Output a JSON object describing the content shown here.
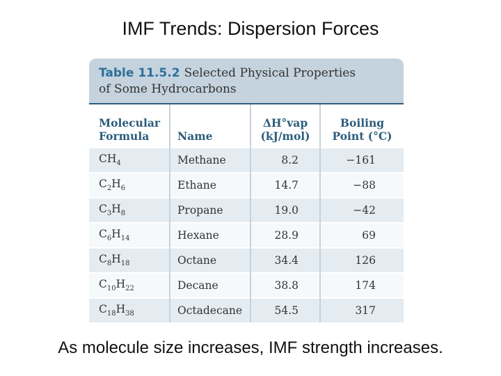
{
  "slide": {
    "title": "IMF Trends: Dispersion Forces",
    "caption": "As molecule size increases, IMF strength increases."
  },
  "table": {
    "number": "Table 11.5.2",
    "title_line1": "Selected Physical Properties",
    "title_line2": "of Some Hydrocarbons",
    "headers": {
      "formula_line1": "Molecular",
      "formula_line2": "Formula",
      "name": "Name",
      "dh_line1": "ΔH°vap",
      "dh_line2": "(kJ/mol)",
      "bp_line1": "Boiling",
      "bp_line2": "Point (°C)"
    },
    "rows": [
      {
        "c": "C",
        "cn": "",
        "h": "H",
        "hn": "4",
        "name": "Methane",
        "dh": "8.2",
        "bp": "−161"
      },
      {
        "c": "C",
        "cn": "2",
        "h": "H",
        "hn": "6",
        "name": "Ethane",
        "dh": "14.7",
        "bp": "−88"
      },
      {
        "c": "C",
        "cn": "3",
        "h": "H",
        "hn": "8",
        "name": "Propane",
        "dh": "19.0",
        "bp": "−42"
      },
      {
        "c": "C",
        "cn": "6",
        "h": "H",
        "hn": "14",
        "name": "Hexane",
        "dh": "28.9",
        "bp": "69"
      },
      {
        "c": "C",
        "cn": "8",
        "h": "H",
        "hn": "18",
        "name": "Octane",
        "dh": "34.4",
        "bp": "126"
      },
      {
        "c": "C",
        "cn": "10",
        "h": "H",
        "hn": "22",
        "name": "Decane",
        "dh": "38.8",
        "bp": "174"
      },
      {
        "c": "C",
        "cn": "18",
        "h": "H",
        "hn": "38",
        "name": "Octadecane",
        "dh": "54.5",
        "bp": "317"
      }
    ]
  }
}
